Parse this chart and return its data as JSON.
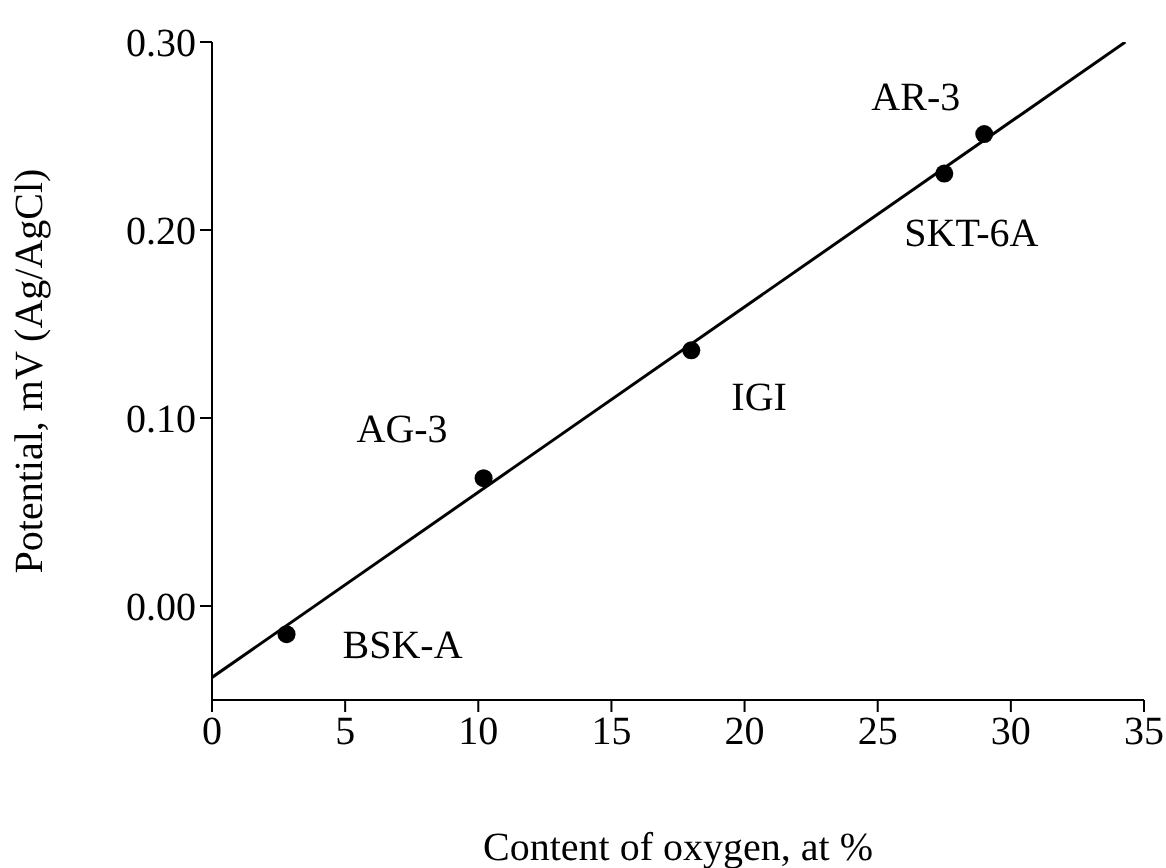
{
  "chart_data": {
    "type": "scatter",
    "xlabel": "Content of oxygen, at %",
    "ylabel": "Potential, mV (Ag/AgCl)",
    "xlim": [
      0,
      35
    ],
    "xticks": [
      0,
      5,
      10,
      15,
      20,
      25,
      30,
      35
    ],
    "ylim": [
      -0.05,
      0.3
    ],
    "yticks": [
      {
        "value": 0,
        "label": "0.00"
      },
      {
        "value": 0.1,
        "label": "0.10"
      },
      {
        "value": 0.2,
        "label": "0.20"
      },
      {
        "value": 0.3,
        "label": "0.30"
      }
    ],
    "grid": false,
    "legend": false,
    "marker": "circle",
    "series": [
      {
        "color": "#000000",
        "x": [
          2.8,
          10.2,
          18.0,
          27.5,
          29.0
        ],
        "values": [
          -0.015,
          0.068,
          0.136,
          0.23,
          0.251
        ]
      },
      {
        "type": "line",
        "color": "#000000",
        "marker": "none",
        "line_style": "solid",
        "x": [
          0,
          34.3
        ],
        "values": [
          -0.038,
          0.3
        ]
      }
    ],
    "annotations": [
      {
        "text": "BSK-A",
        "x": 2.8,
        "y": -0.015
      },
      {
        "text": "AG-3",
        "x": 10.2,
        "y": 0.068
      },
      {
        "text": "IGI",
        "x": 18.0,
        "y": 0.136
      },
      {
        "text": "SKT-6A",
        "x": 27.5,
        "y": 0.23
      },
      {
        "text": "AR-3",
        "x": 29.0,
        "y": 0.251
      }
    ]
  }
}
